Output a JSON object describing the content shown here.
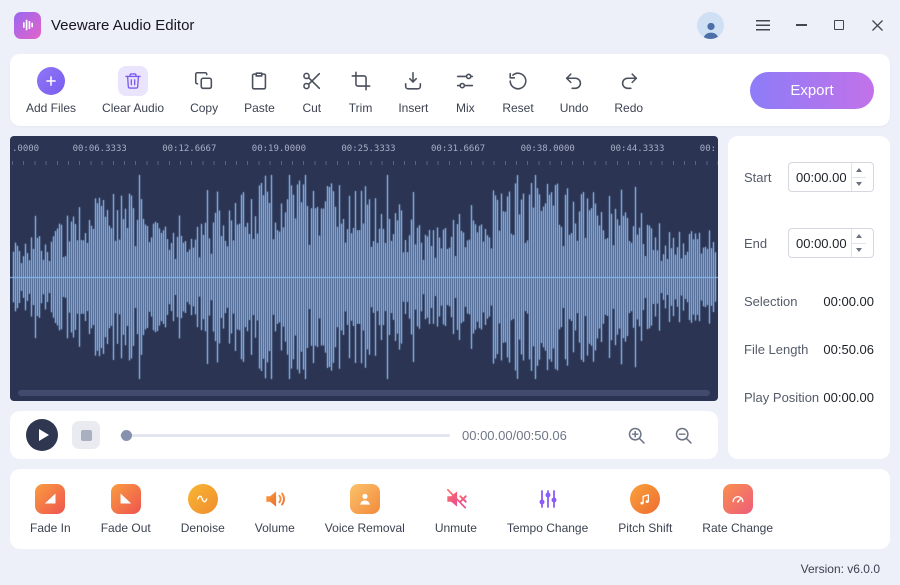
{
  "titlebar": {
    "app_title": "Veeware Audio Editor"
  },
  "toolbar": {
    "items": [
      {
        "label": "Add Files",
        "icon": "add-circle-icon"
      },
      {
        "label": "Clear Audio",
        "icon": "trash-icon"
      },
      {
        "label": "Copy",
        "icon": "copy-icon"
      },
      {
        "label": "Paste",
        "icon": "paste-icon"
      },
      {
        "label": "Cut",
        "icon": "scissors-icon"
      },
      {
        "label": "Trim",
        "icon": "crop-icon"
      },
      {
        "label": "Insert",
        "icon": "insert-icon"
      },
      {
        "label": "Mix",
        "icon": "mix-icon"
      },
      {
        "label": "Reset",
        "icon": "reset-icon"
      },
      {
        "label": "Undo",
        "icon": "undo-icon"
      },
      {
        "label": "Redo",
        "icon": "redo-icon"
      }
    ],
    "export_label": "Export"
  },
  "timeline": {
    "ruler_labels": [
      ".0000",
      "00:06.3333",
      "00:12.6667",
      "00:19.0000",
      "00:25.3333",
      "00:31.6667",
      "00:38.0000",
      "00:44.3333",
      "00:"
    ]
  },
  "transport": {
    "time_display": "00:00.00/00:50.06"
  },
  "properties": {
    "start_label": "Start",
    "start_value": "00:00.00",
    "end_label": "End",
    "end_value": "00:00.00",
    "rows": [
      {
        "label": "Selection",
        "value": "00:00.00"
      },
      {
        "label": "File Length",
        "value": "00:50.06"
      },
      {
        "label": "Play Position",
        "value": "00:00.00"
      }
    ]
  },
  "effects": {
    "items": [
      {
        "label": "Fade In",
        "icon": "fade-in-icon"
      },
      {
        "label": "Fade Out",
        "icon": "fade-out-icon"
      },
      {
        "label": "Denoise",
        "icon": "denoise-icon"
      },
      {
        "label": "Volume",
        "icon": "speaker-icon"
      },
      {
        "label": "Voice Removal",
        "icon": "person-icon"
      },
      {
        "label": "Unmute",
        "icon": "muted-speaker-icon"
      },
      {
        "label": "Tempo Change",
        "icon": "sliders-icon"
      },
      {
        "label": "Pitch Shift",
        "icon": "music-note-icon"
      },
      {
        "label": "Rate Change",
        "icon": "gauge-icon"
      }
    ]
  },
  "statusbar": {
    "version": "Version: v6.0.0"
  },
  "colors": {
    "accent_purple": "#8d7cf8",
    "export_gradient_end": "#c272e9",
    "waveform": "#8abdf0",
    "waveform_background": "#2c3453",
    "app_background": "#edeff9",
    "effect_orange": "#f08c2e",
    "effect_pink": "#ee5d7a"
  }
}
